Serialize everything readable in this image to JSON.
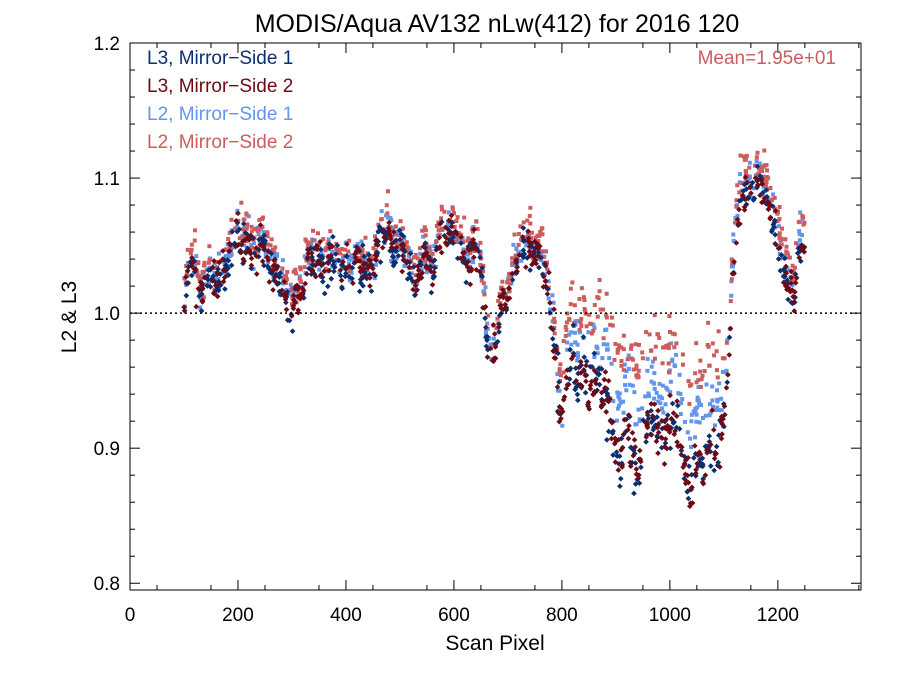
{
  "chart_data": {
    "type": "scatter",
    "title": "MODIS/Aqua AV132 nLw(412) for 2016 120",
    "xlabel": "Scan Pixel",
    "ylabel": "L2 & L3",
    "xlim": [
      0,
      1354
    ],
    "ylim": [
      0.795,
      1.2
    ],
    "x_ticks": [
      0,
      200,
      400,
      600,
      800,
      1000,
      1200
    ],
    "x_tick_labels": [
      "0",
      "200",
      "400",
      "600",
      "800",
      "1000",
      "1200"
    ],
    "y_ticks": [
      0.8,
      0.9,
      1.0,
      1.1,
      1.2
    ],
    "y_tick_labels": [
      "0.8",
      "0.9",
      "1.0",
      "1.1",
      "1.2"
    ],
    "reference_line": 1.0,
    "annotation": "Mean=1.95e+01",
    "legend_position": "top-left",
    "series": [
      {
        "name": "L3, Mirror−Side 1",
        "color": "#0a2f6e"
      },
      {
        "name": "L3, Mirror−Side 2",
        "color": "#6e0a14"
      },
      {
        "name": "L2, Mirror−Side 1",
        "color": "#6495ed"
      },
      {
        "name": "L2, Mirror−Side 2",
        "color": "#cd5c5c"
      }
    ],
    "profile_x": [
      100,
      110,
      120,
      130,
      140,
      150,
      160,
      170,
      180,
      190,
      200,
      210,
      220,
      230,
      240,
      250,
      260,
      270,
      280,
      290,
      300,
      310,
      320,
      330,
      340,
      350,
      360,
      370,
      380,
      390,
      400,
      410,
      420,
      430,
      440,
      450,
      460,
      470,
      480,
      490,
      500,
      510,
      520,
      530,
      540,
      550,
      560,
      570,
      580,
      590,
      600,
      610,
      620,
      630,
      640,
      650,
      660,
      670,
      680,
      690,
      700,
      710,
      720,
      730,
      740,
      750,
      760,
      770,
      780,
      790,
      800,
      810,
      820,
      830,
      840,
      850,
      860,
      870,
      880,
      890,
      900,
      910,
      920,
      930,
      940,
      950,
      960,
      970,
      980,
      990,
      1000,
      1010,
      1020,
      1030,
      1040,
      1050,
      1060,
      1070,
      1080,
      1090,
      1100,
      1110,
      1120,
      1130,
      1140,
      1150,
      1160,
      1170,
      1180,
      1190,
      1200,
      1210,
      1220,
      1230,
      1240,
      1250
    ],
    "l3_profile": [
      1.0,
      1.04,
      1.03,
      1.01,
      1.02,
      1.03,
      1.02,
      1.03,
      1.04,
      1.05,
      1.06,
      1.05,
      1.05,
      1.04,
      1.05,
      1.05,
      1.03,
      1.03,
      1.02,
      1.01,
      1.0,
      1.01,
      1.02,
      1.04,
      1.04,
      1.04,
      1.03,
      1.04,
      1.04,
      1.03,
      1.04,
      1.03,
      1.04,
      1.03,
      1.03,
      1.03,
      1.05,
      1.06,
      1.06,
      1.04,
      1.05,
      1.04,
      1.03,
      1.02,
      1.04,
      1.04,
      1.03,
      1.05,
      1.06,
      1.06,
      1.06,
      1.05,
      1.04,
      1.04,
      1.05,
      1.03,
      0.99,
      0.97,
      0.98,
      1.01,
      1.01,
      1.03,
      1.04,
      1.05,
      1.05,
      1.04,
      1.04,
      1.03,
      1.0,
      0.96,
      0.92,
      0.95,
      0.97,
      0.95,
      0.96,
      0.94,
      0.95,
      0.95,
      0.94,
      0.92,
      0.9,
      0.89,
      0.92,
      0.9,
      0.88,
      0.9,
      0.92,
      0.92,
      0.91,
      0.91,
      0.92,
      0.93,
      0.9,
      0.88,
      0.87,
      0.89,
      0.88,
      0.9,
      0.9,
      0.9,
      0.92,
      0.98,
      1.05,
      1.08,
      1.09,
      1.09,
      1.09,
      1.09,
      1.08,
      1.07,
      1.05,
      1.03,
      1.02,
      1.01,
      1.05,
      1.05
    ],
    "l2_ms1_offset": [
      0.006,
      0.006,
      0.006,
      0.006,
      0.006,
      0.006,
      0.006,
      0.006,
      0.006,
      0.006,
      0.006,
      0.006,
      0.006,
      0.006,
      0.006,
      0.006,
      0.006,
      0.006,
      0.006,
      0.006,
      0.006,
      0.006,
      0.006,
      0.006,
      0.006,
      0.006,
      0.006,
      0.006,
      0.006,
      0.006,
      0.006,
      0.006,
      0.006,
      0.006,
      0.006,
      0.006,
      0.006,
      0.006,
      0.006,
      0.006,
      0.006,
      0.006,
      0.006,
      0.006,
      0.006,
      0.006,
      0.006,
      0.006,
      0.006,
      0.006,
      0.006,
      0.006,
      0.006,
      0.006,
      0.006,
      0.006,
      0.006,
      0.006,
      0.006,
      0.006,
      0.006,
      0.006,
      0.006,
      0.006,
      0.006,
      0.006,
      0.006,
      0.006,
      0.006,
      0.006,
      0.02,
      0.02,
      0.025,
      0.025,
      0.025,
      0.025,
      0.025,
      0.03,
      0.035,
      0.04,
      0.04,
      0.04,
      0.04,
      0.04,
      0.04,
      0.04,
      0.035,
      0.03,
      0.03,
      0.03,
      0.035,
      0.035,
      0.035,
      0.04,
      0.04,
      0.04,
      0.04,
      0.04,
      0.035,
      0.03,
      0.02,
      0.01,
      0.01,
      0.01,
      0.01,
      0.01,
      0.01,
      0.01,
      0.01,
      0.01,
      0.01,
      0.01,
      0.01,
      0.01,
      0.01,
      0.01
    ],
    "l2_ms2_offset": [
      0.012,
      0.012,
      0.012,
      0.012,
      0.012,
      0.012,
      0.012,
      0.012,
      0.012,
      0.012,
      0.012,
      0.012,
      0.012,
      0.012,
      0.012,
      0.012,
      0.012,
      0.012,
      0.012,
      0.012,
      0.012,
      0.012,
      0.012,
      0.012,
      0.012,
      0.012,
      0.012,
      0.012,
      0.012,
      0.012,
      0.012,
      0.012,
      0.012,
      0.012,
      0.012,
      0.012,
      0.012,
      0.012,
      0.012,
      0.012,
      0.012,
      0.012,
      0.012,
      0.012,
      0.012,
      0.012,
      0.012,
      0.012,
      0.012,
      0.012,
      0.012,
      0.012,
      0.012,
      0.012,
      0.012,
      0.012,
      0.012,
      0.012,
      0.012,
      0.012,
      0.012,
      0.012,
      0.012,
      0.012,
      0.012,
      0.012,
      0.012,
      0.012,
      0.012,
      0.012,
      0.04,
      0.04,
      0.045,
      0.045,
      0.045,
      0.05,
      0.05,
      0.055,
      0.06,
      0.065,
      0.07,
      0.07,
      0.07,
      0.07,
      0.07,
      0.07,
      0.065,
      0.06,
      0.06,
      0.06,
      0.06,
      0.065,
      0.07,
      0.075,
      0.075,
      0.075,
      0.075,
      0.075,
      0.07,
      0.06,
      0.04,
      0.02,
      0.02,
      0.02,
      0.02,
      0.02,
      0.02,
      0.02,
      0.02,
      0.02,
      0.02,
      0.02,
      0.02,
      0.02,
      0.02,
      0.02
    ],
    "scatter_spread": 0.022,
    "points_per_series": 560,
    "random_seed": 42
  }
}
